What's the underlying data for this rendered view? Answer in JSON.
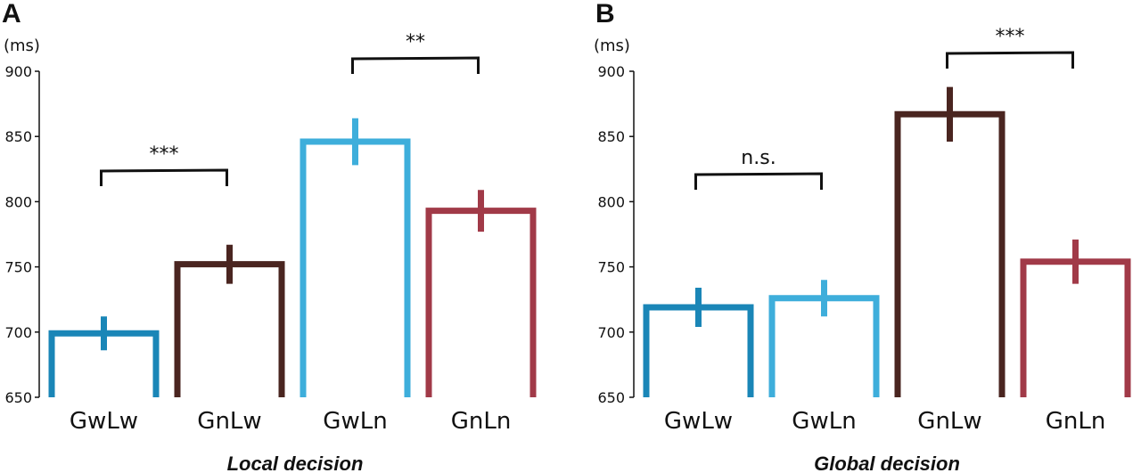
{
  "chart_data": [
    {
      "type": "bar",
      "panel": "A",
      "unit": "(ms)",
      "xlabel": "Local decision",
      "ylim": [
        650,
        900
      ],
      "yticks": [
        "650",
        "700",
        "750",
        "800",
        "850",
        "900"
      ],
      "categories": [
        "GwLw",
        "GnLw",
        "GwLn",
        "GnLn"
      ],
      "values": [
        699,
        752,
        846,
        793
      ],
      "errors": [
        13,
        15,
        18,
        16
      ],
      "colors": [
        "#1a86b7",
        "#4a2520",
        "#3eaedb",
        "#a13a48"
      ],
      "comparisons": [
        {
          "from": 0,
          "to": 1,
          "label": "***"
        },
        {
          "from": 2,
          "to": 3,
          "label": "**"
        }
      ]
    },
    {
      "type": "bar",
      "panel": "B",
      "unit": "(ms)",
      "xlabel": "Global decision",
      "ylim": [
        650,
        900
      ],
      "yticks": [
        "650",
        "700",
        "750",
        "800",
        "850",
        "900"
      ],
      "categories": [
        "GwLw",
        "GwLn",
        "GnLw",
        "GnLn"
      ],
      "values": [
        719,
        726,
        867,
        754
      ],
      "errors": [
        15,
        14,
        21,
        17
      ],
      "colors": [
        "#1a86b7",
        "#3eaedb",
        "#4a2520",
        "#a13a48"
      ],
      "comparisons": [
        {
          "from": 0,
          "to": 1,
          "label": "n.s."
        },
        {
          "from": 2,
          "to": 3,
          "label": "***"
        }
      ]
    }
  ]
}
